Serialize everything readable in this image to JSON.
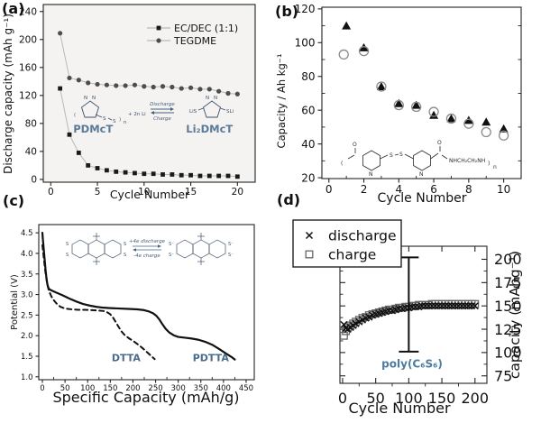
{
  "panels": {
    "a": {
      "tag": "(a)",
      "inset": {
        "n": "N",
        "s": "S",
        "bracket_open": "(",
        "bracket_close": ")",
        "bracket_sub": "n",
        "plus_li": "+ 2n Li",
        "discharge": "Discharge",
        "charge": "Charge",
        "lis": "LiS",
        "sli": "SLi",
        "pdmct": "PDMcT",
        "li2dmct": "Li₂DMcT"
      }
    },
    "b": {
      "tag": "(b)",
      "inset": {
        "o": "O",
        "n": "N",
        "s": "S",
        "amine": "NHCH₂CH₂NH",
        "bracket_open": "(",
        "bracket_close": ")",
        "bracket_sub": "n"
      }
    },
    "c": {
      "tag": "(c)",
      "inset": {
        "s": "S",
        "s_minus": "S⁻",
        "discharge": "+4e discharge",
        "charge": "-4e charge"
      }
    },
    "d": {
      "tag": "(d)"
    }
  },
  "chart_data": [
    {
      "id": "a",
      "type": "scatter",
      "xlabel": "Cycle Number",
      "ylabel": "Discharge capacity (mAh g⁻¹)",
      "xlim": [
        -0.8,
        21.9
      ],
      "ylim": [
        -4,
        250
      ],
      "xticks": {
        "values": [
          0,
          5,
          10,
          15,
          20
        ],
        "labels": [
          "0",
          "5",
          "10",
          "15",
          "20"
        ]
      },
      "yticks": {
        "values": [
          0,
          40,
          80,
          120,
          160,
          200,
          240
        ],
        "labels": [
          "0",
          "40",
          "80",
          "120",
          "160",
          "200",
          "240"
        ]
      },
      "xminor": [],
      "yminor": [],
      "legend": [
        {
          "marker": "square",
          "label": "EC/DEC (1:1)"
        },
        {
          "marker": "circle",
          "label": "TEGDME"
        }
      ],
      "series": [
        {
          "name": "EC/DEC (1:1)",
          "marker": "square",
          "color": "#1a1a1a",
          "line_color": "#b8b8b8",
          "x": [
            1,
            2,
            3,
            4,
            5,
            6,
            7,
            8,
            9,
            10,
            11,
            12,
            13,
            14,
            15,
            16,
            17,
            18,
            19,
            20
          ],
          "y": [
            130,
            64,
            38,
            20,
            16,
            13,
            11,
            10,
            9,
            8,
            8,
            7,
            7,
            6,
            6,
            5,
            5,
            5,
            5,
            4
          ]
        },
        {
          "name": "TEGDME",
          "marker": "circle",
          "color": "#4d4d4d",
          "line_color": "#b8b8b8",
          "x": [
            1,
            2,
            3,
            4,
            5,
            6,
            7,
            8,
            9,
            10,
            11,
            12,
            13,
            14,
            15,
            16,
            17,
            18,
            19,
            20
          ],
          "y": [
            209,
            145,
            142,
            138,
            136,
            135,
            134,
            134,
            135,
            133,
            132,
            133,
            132,
            130,
            131,
            129,
            129,
            126,
            123,
            122
          ]
        }
      ],
      "annotations": [
        {
          "text": "PDMcT",
          "x": 4.54,
          "y": 67,
          "color": "#5a7a9a",
          "size": 11.5,
          "weight": "bold"
        },
        {
          "text": "Li₂DMcT",
          "x": 17.0,
          "y": 67,
          "color": "#5a7a9a",
          "size": 11.5,
          "weight": "bold"
        }
      ]
    },
    {
      "id": "b",
      "type": "scatter",
      "xlabel": "Cycle Number",
      "ylabel": "Capacity / Ah kg⁻¹",
      "xlim": [
        -0.4,
        11.0
      ],
      "ylim": [
        19.5,
        121
      ],
      "xticks": {
        "values": [
          0,
          2,
          4,
          6,
          8,
          10
        ],
        "labels": [
          "0",
          "2",
          "4",
          "6",
          "8",
          "10"
        ]
      },
      "yticks": {
        "values": [
          20,
          40,
          60,
          80,
          100,
          120
        ],
        "labels": [
          "20",
          "40",
          "60",
          "80",
          "100",
          "120"
        ]
      },
      "xminor": [
        1,
        3,
        5,
        7,
        9
      ],
      "yminor": [
        30,
        50,
        70,
        90,
        110
      ],
      "legend": [],
      "series": [
        {
          "name": "filled triangles",
          "marker": "triangle",
          "color": "#111111",
          "x": [
            1,
            2,
            3,
            4,
            5,
            6,
            7,
            8,
            9,
            10
          ],
          "y": [
            110,
            97,
            74,
            64,
            63,
            57,
            55,
            54,
            53,
            49
          ]
        },
        {
          "name": "open circles",
          "marker": "circle-open",
          "color": "#8a8a8a",
          "x": [
            0.85,
            2,
            3,
            4,
            5,
            6,
            7,
            8,
            9,
            10
          ],
          "y": [
            93,
            95,
            74,
            63,
            62,
            59,
            55,
            52,
            47,
            45
          ]
        }
      ],
      "annotations": []
    },
    {
      "id": "c",
      "type": "line",
      "xlabel": "Specific Capacity (mAh/g)",
      "ylabel": "Potential (V)",
      "xlim": [
        -8,
        468
      ],
      "ylim": [
        0.93,
        4.7
      ],
      "xticks": {
        "values": [
          0,
          50,
          100,
          150,
          200,
          250,
          300,
          350,
          400,
          450
        ],
        "labels": [
          "0",
          "50",
          "100",
          "150",
          "200",
          "250",
          "300",
          "350",
          "400",
          "450"
        ]
      },
      "yticks": {
        "values": [
          1.0,
          1.5,
          2.0,
          2.5,
          3.0,
          3.5,
          4.0,
          4.5
        ],
        "labels": [
          "1.0",
          "1.5",
          "2.0",
          "2.5",
          "3.0",
          "3.5",
          "4.0",
          "4.5"
        ]
      },
      "xminor": [
        25,
        75,
        125,
        175,
        225,
        275,
        325,
        375,
        425
      ],
      "yminor": [],
      "legend": [],
      "series": [
        {
          "name": "PDTTA",
          "marker": "none",
          "color": "#111111",
          "line_color": "#111111",
          "line_width": 2.2,
          "x": [
            0,
            1,
            3,
            5,
            7,
            9,
            11,
            13,
            15,
            20,
            30,
            45,
            60,
            75,
            90,
            105,
            120,
            135,
            150,
            170,
            190,
            210,
            225,
            235,
            245,
            252,
            258,
            265,
            272,
            280,
            290,
            300,
            315,
            330,
            345,
            360,
            375,
            390,
            405,
            418,
            425
          ],
          "y": [
            4.5,
            4.35,
            4.1,
            3.85,
            3.6,
            3.4,
            3.25,
            3.17,
            3.13,
            3.1,
            3.05,
            2.98,
            2.9,
            2.83,
            2.77,
            2.73,
            2.7,
            2.68,
            2.67,
            2.66,
            2.65,
            2.64,
            2.62,
            2.59,
            2.54,
            2.48,
            2.4,
            2.28,
            2.17,
            2.08,
            2.01,
            1.97,
            1.95,
            1.93,
            1.9,
            1.85,
            1.78,
            1.68,
            1.57,
            1.48,
            1.42
          ]
        },
        {
          "name": "DTTA",
          "marker": "none",
          "color": "#111111",
          "line_color": "#111111",
          "line_width": 2.0,
          "dash": "5,4",
          "x": [
            0,
            2,
            4,
            6,
            8,
            10,
            13,
            16,
            20,
            26,
            33,
            40,
            50,
            65,
            80,
            95,
            110,
            125,
            135,
            143,
            150,
            156,
            162,
            168,
            175,
            183,
            192,
            202,
            212,
            222,
            232,
            241,
            248
          ],
          "y": [
            4.2,
            4.0,
            3.8,
            3.6,
            3.45,
            3.3,
            3.15,
            3.05,
            2.95,
            2.85,
            2.76,
            2.7,
            2.66,
            2.64,
            2.63,
            2.63,
            2.62,
            2.61,
            2.6,
            2.57,
            2.52,
            2.44,
            2.33,
            2.22,
            2.1,
            2.0,
            1.93,
            1.86,
            1.78,
            1.69,
            1.59,
            1.5,
            1.43
          ]
        }
      ],
      "annotations": [
        {
          "text": "DTTA",
          "x": 185,
          "y": 1.38,
          "color": "#4a6b8c",
          "size": 11,
          "weight": "bold"
        },
        {
          "text": "PDTTA",
          "x": 372,
          "y": 1.38,
          "color": "#4a6b8c",
          "size": 11,
          "weight": "bold"
        }
      ]
    },
    {
      "id": "d",
      "type": "scatter",
      "xlabel": "Cycle Number",
      "ylabel": "capacity (mAhg⁻¹)",
      "xlim": [
        -4,
        218
      ],
      "ylim": [
        67,
        214
      ],
      "xticks": {
        "values": [
          0,
          50,
          100,
          150,
          200
        ],
        "labels": [
          "0",
          "50",
          "100",
          "150",
          "200"
        ]
      },
      "yticks": {
        "values": [
          75,
          100,
          125,
          150,
          175,
          200
        ],
        "labels": [
          "75",
          "100",
          "125",
          "150",
          "175",
          "200"
        ]
      },
      "xminor": [
        25,
        75,
        125,
        175
      ],
      "yminor": [
        87.5,
        112.5,
        137.5,
        162.5,
        187.5
      ],
      "legend": [
        {
          "marker": "x",
          "label": "discharge"
        },
        {
          "marker": "square-open",
          "label": "charge"
        }
      ],
      "errorbar": {
        "x": 100,
        "low": 101,
        "high": 202
      },
      "series": [
        {
          "name": "charge",
          "marker": "square-open",
          "color": "#666666",
          "x": [
            2,
            5,
            8,
            12,
            16,
            20,
            25,
            30,
            35,
            40,
            45,
            50,
            55,
            60,
            65,
            70,
            75,
            80,
            85,
            90,
            95,
            100,
            105,
            110,
            115,
            120,
            125,
            130,
            135,
            140,
            145,
            150,
            155,
            160,
            165,
            170,
            175,
            180,
            185,
            190,
            195,
            200
          ],
          "y": [
            118,
            123,
            127,
            129,
            131,
            133,
            135,
            137,
            138,
            140,
            141,
            142,
            143,
            144,
            145,
            146,
            146,
            147,
            148,
            148,
            149,
            149,
            150,
            150,
            151,
            151,
            151,
            151,
            152,
            152,
            152,
            152,
            152,
            152,
            152,
            152,
            152,
            152,
            152,
            152,
            152,
            152
          ]
        },
        {
          "name": "discharge",
          "marker": "x",
          "color": "#111111",
          "x": [
            2,
            5,
            8,
            12,
            16,
            20,
            25,
            30,
            35,
            40,
            45,
            50,
            55,
            60,
            65,
            70,
            75,
            80,
            85,
            90,
            95,
            100,
            105,
            110,
            115,
            120,
            125,
            130,
            135,
            140,
            145,
            150,
            155,
            160,
            165,
            170,
            175,
            180,
            185,
            190,
            195,
            200
          ],
          "y": [
            130,
            126,
            125,
            127,
            129,
            131,
            133,
            135,
            137,
            138,
            140,
            141,
            142,
            143,
            144,
            145,
            145,
            146,
            147,
            147,
            148,
            148,
            149,
            149,
            149,
            150,
            150,
            150,
            150,
            150,
            150,
            150,
            150,
            150,
            150,
            150,
            150,
            150,
            150,
            150,
            150,
            150
          ]
        }
      ],
      "annotations": [
        {
          "text": "poly(C₆S₆)",
          "x": 105,
          "y": 84,
          "color": "#4c7da0",
          "size": 12,
          "weight": "bold"
        }
      ]
    }
  ]
}
